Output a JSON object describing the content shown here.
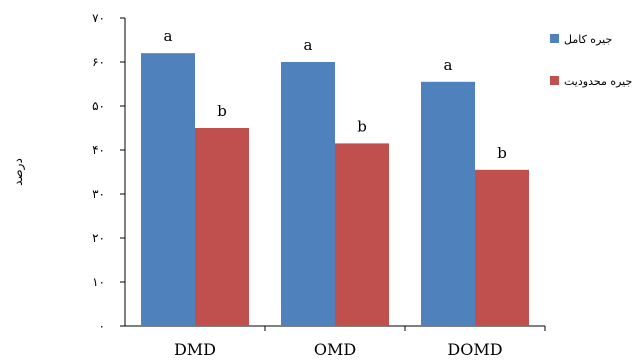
{
  "chart_data": {
    "type": "bar",
    "categories": [
      "DMD",
      "OMD",
      "DOMD"
    ],
    "series": [
      {
        "name": "جیره کامل",
        "color": "#4f81bd",
        "values": [
          62,
          60,
          55.5
        ],
        "labels": [
          "a",
          "a",
          "a"
        ]
      },
      {
        "name": "جیره محدودیت",
        "color": "#c0504d",
        "values": [
          45,
          41.5,
          35.5
        ],
        "labels": [
          "b",
          "b",
          "b"
        ]
      }
    ],
    "ylabel": "درصد",
    "ylim": [
      0,
      70
    ],
    "yticks": [
      {
        "value": 0,
        "label": "۰"
      },
      {
        "value": 10,
        "label": "۱۰"
      },
      {
        "value": 20,
        "label": "۲۰"
      },
      {
        "value": 30,
        "label": "۳۰"
      },
      {
        "value": 40,
        "label": "۴۰"
      },
      {
        "value": 50,
        "label": "۵۰"
      },
      {
        "value": 60,
        "label": "۶۰"
      },
      {
        "value": 70,
        "label": "۷۰"
      }
    ],
    "grid": false,
    "legend_position": "right"
  }
}
